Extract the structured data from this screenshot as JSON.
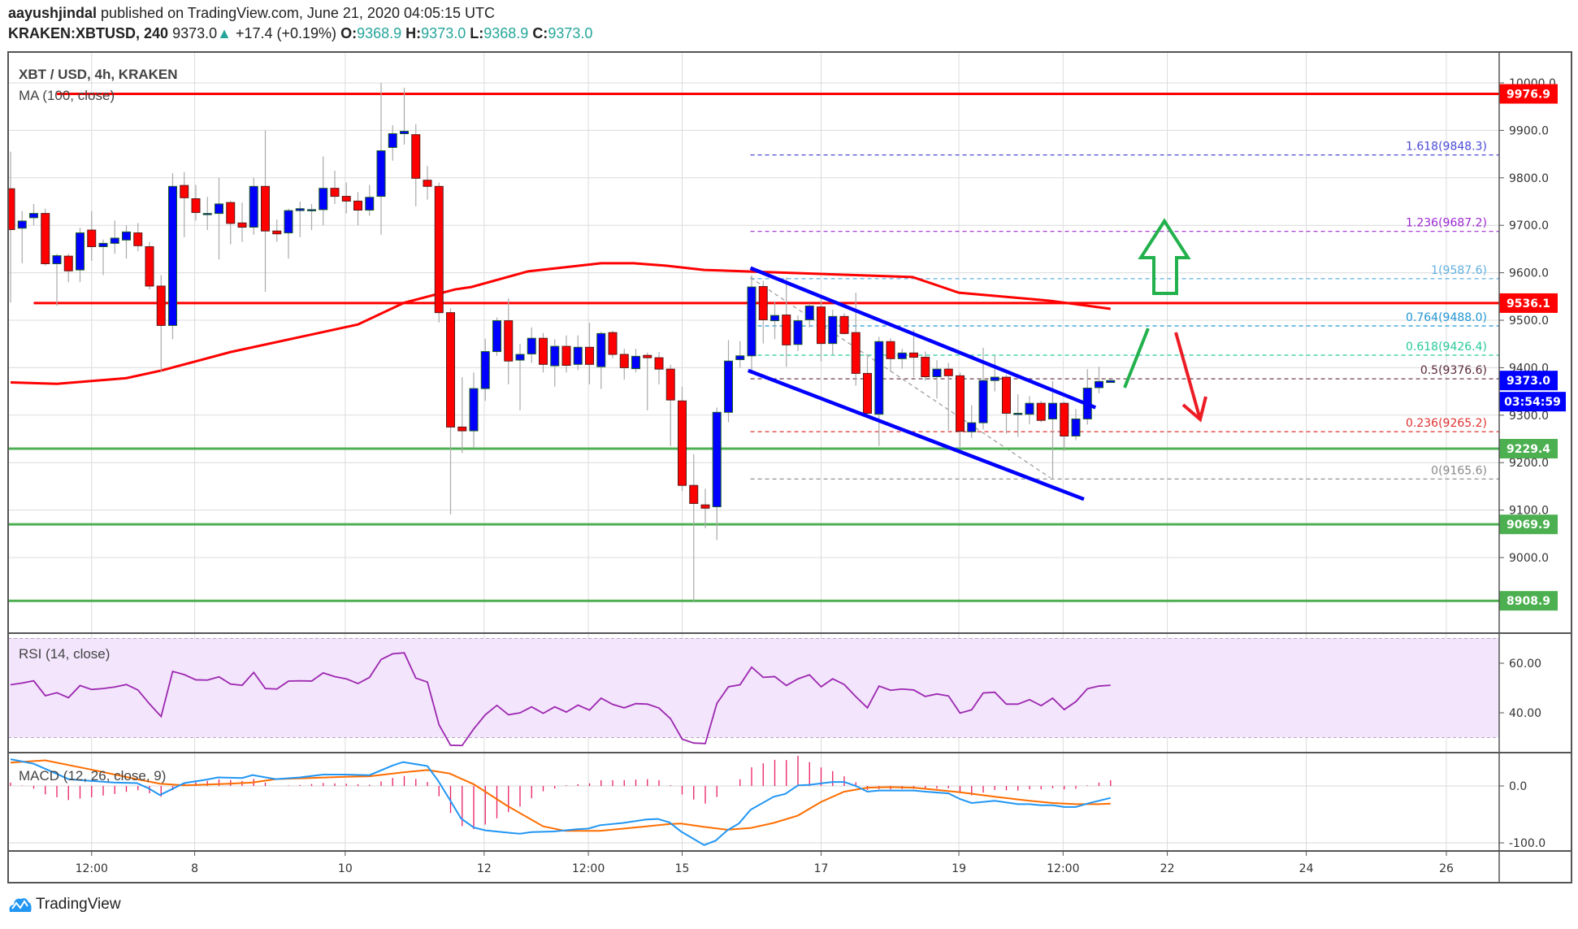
{
  "header": {
    "author": "aayushjindal",
    "published": " published on TradingView.com, June 21, 2020 04:05:15 UTC",
    "symbol": "KRAKEN:XBTUSD, 240",
    "last": "9373.0",
    "change": "+17.4 (+0.19%)",
    "o_label": "O:",
    "o": "9368.9",
    "h_label": "H:",
    "h": "9373.0",
    "l_label": "L:",
    "l": "9368.9",
    "c_label": "C:",
    "c": "9373.0",
    "up_color": "#26a69a"
  },
  "footer": {
    "brand": "TradingView"
  },
  "chart_data": {
    "type": "candlestick",
    "title": "XBT / USD, 4h, KRAKEN",
    "ma_label": "MA (100, close)",
    "rsi_label": "RSI (14, close)",
    "macd_label": "MACD (12, 26, close, 9)",
    "ylim": [
      8850,
      10040
    ],
    "price_ticks": [
      "10000.0",
      "9900.0",
      "9800.0",
      "9700.0",
      "9600.0",
      "9500.0",
      "9400.0",
      "9300.0",
      "9200.0",
      "9100.0",
      "9000.0"
    ],
    "price_tick_values": [
      10000,
      9900,
      9800,
      9700,
      9600,
      9500,
      9400,
      9300,
      9200,
      9100,
      9000
    ],
    "time_ticks": [
      {
        "label": "12:00",
        "candle": 8.0
      },
      {
        "label": "8",
        "candle": 16.9
      },
      {
        "label": "10",
        "candle": 29.9
      },
      {
        "label": "12",
        "candle": 41.9
      },
      {
        "label": "12:00",
        "candle": 50.9
      },
      {
        "label": "15",
        "candle": 59.0
      },
      {
        "label": "17",
        "candle": 71.0
      },
      {
        "label": "19",
        "candle": 82.9
      },
      {
        "label": "12:00",
        "candle": 91.9
      },
      {
        "label": "22",
        "candle": 100.9
      },
      {
        "label": "24",
        "candle": 112.9
      },
      {
        "label": "26",
        "candle": 125.0
      }
    ],
    "colors": {
      "up": "#0000ff",
      "down": "#ff0000",
      "ma": "#ff0000",
      "rsi": "#9c27b0",
      "macd": "#2196f3",
      "signal": "#ff6d00",
      "hist": "#e91e63",
      "channel": "#0000ff"
    },
    "candles_ohlc": [
      [
        9777,
        9855,
        9537,
        9691
      ],
      [
        9694,
        9730,
        9620,
        9709
      ],
      [
        9716,
        9745,
        9700,
        9725
      ],
      [
        9725,
        9735,
        9615,
        9619
      ],
      [
        9619,
        9640,
        9530,
        9636
      ],
      [
        9635,
        9640,
        9580,
        9604
      ],
      [
        9606,
        9695,
        9580,
        9684
      ],
      [
        9690,
        9730,
        9625,
        9655
      ],
      [
        9655,
        9670,
        9595,
        9662
      ],
      [
        9662,
        9710,
        9640,
        9673
      ],
      [
        9669,
        9700,
        9630,
        9686
      ],
      [
        9684,
        9705,
        9645,
        9657
      ],
      [
        9655,
        9665,
        9565,
        9572
      ],
      [
        9572,
        9595,
        9390,
        9489
      ],
      [
        9489,
        9810,
        9460,
        9782
      ],
      [
        9784,
        9812,
        9675,
        9758
      ],
      [
        9756,
        9785,
        9710,
        9727
      ],
      [
        9725,
        9760,
        9690,
        9725
      ],
      [
        9725,
        9800,
        9628,
        9745
      ],
      [
        9748,
        9752,
        9660,
        9704
      ],
      [
        9705,
        9748,
        9665,
        9696
      ],
      [
        9696,
        9800,
        9680,
        9782
      ],
      [
        9782,
        9900,
        9560,
        9688
      ],
      [
        9688,
        9712,
        9665,
        9682
      ],
      [
        9684,
        9735,
        9630,
        9731
      ],
      [
        9731,
        9750,
        9675,
        9735
      ],
      [
        9733,
        9745,
        9690,
        9733
      ],
      [
        9733,
        9845,
        9700,
        9778
      ],
      [
        9778,
        9815,
        9745,
        9761
      ],
      [
        9761,
        9790,
        9725,
        9751
      ],
      [
        9751,
        9770,
        9700,
        9732
      ],
      [
        9732,
        9785,
        9720,
        9759
      ],
      [
        9761,
        10000,
        9680,
        9857
      ],
      [
        9864,
        9911,
        9836,
        9893
      ],
      [
        9893,
        9990,
        9870,
        9898
      ],
      [
        9891,
        9913,
        9740,
        9799
      ],
      [
        9795,
        9825,
        9754,
        9782
      ],
      [
        9782,
        9790,
        9495,
        9516
      ],
      [
        9516,
        9525,
        9091,
        9275
      ],
      [
        9275,
        9380,
        9220,
        9267
      ],
      [
        9267,
        9390,
        9230,
        9356
      ],
      [
        9356,
        9461,
        9330,
        9434
      ],
      [
        9434,
        9506,
        9425,
        9499
      ],
      [
        9499,
        9546,
        9365,
        9414
      ],
      [
        9416,
        9450,
        9310,
        9428
      ],
      [
        9429,
        9485,
        9410,
        9462
      ],
      [
        9462,
        9473,
        9390,
        9407
      ],
      [
        9404,
        9460,
        9360,
        9445
      ],
      [
        9445,
        9468,
        9390,
        9405
      ],
      [
        9407,
        9468,
        9395,
        9443
      ],
      [
        9443,
        9495,
        9365,
        9407
      ],
      [
        9402,
        9476,
        9355,
        9472
      ],
      [
        9474,
        9478,
        9420,
        9428
      ],
      [
        9428,
        9440,
        9375,
        9400
      ],
      [
        9398,
        9440,
        9390,
        9424
      ],
      [
        9426,
        9432,
        9310,
        9421
      ],
      [
        9421,
        9433,
        9365,
        9397
      ],
      [
        9397,
        9406,
        9235,
        9332
      ],
      [
        9330,
        9360,
        9140,
        9152
      ],
      [
        9152,
        9218,
        8908,
        9114
      ],
      [
        9111,
        9145,
        9062,
        9104
      ],
      [
        9107,
        9316,
        9037,
        9306
      ],
      [
        9306,
        9458,
        9285,
        9414
      ],
      [
        9417,
        9456,
        9400,
        9425
      ],
      [
        9425,
        9595,
        9387,
        9570
      ],
      [
        9571,
        9583,
        9451,
        9501
      ],
      [
        9499,
        9540,
        9460,
        9510
      ],
      [
        9511,
        9590,
        9402,
        9448
      ],
      [
        9449,
        9510,
        9435,
        9499
      ],
      [
        9501,
        9535,
        9485,
        9530
      ],
      [
        9528,
        9547,
        9413,
        9451
      ],
      [
        9451,
        9522,
        9428,
        9508
      ],
      [
        9508,
        9515,
        9470,
        9472
      ],
      [
        9474,
        9558,
        9362,
        9388
      ],
      [
        9388,
        9423,
        9300,
        9304
      ],
      [
        9302,
        9465,
        9235,
        9455
      ],
      [
        9455,
        9462,
        9391,
        9419
      ],
      [
        9419,
        9440,
        9398,
        9431
      ],
      [
        9431,
        9480,
        9380,
        9422
      ],
      [
        9422,
        9434,
        9373,
        9381
      ],
      [
        9381,
        9416,
        9335,
        9397
      ],
      [
        9397,
        9410,
        9268,
        9383
      ],
      [
        9383,
        9390,
        9233,
        9266
      ],
      [
        9265,
        9321,
        9252,
        9284
      ],
      [
        9284,
        9442,
        9270,
        9373
      ],
      [
        9373,
        9425,
        9350,
        9380
      ],
      [
        9380,
        9385,
        9261,
        9304
      ],
      [
        9304,
        9344,
        9254,
        9304
      ],
      [
        9302,
        9340,
        9281,
        9325
      ],
      [
        9325,
        9330,
        9285,
        9289
      ],
      [
        9292,
        9372,
        9167,
        9325
      ],
      [
        9325,
        9328,
        9225,
        9256
      ],
      [
        9256,
        9313,
        9247,
        9292
      ],
      [
        9292,
        9397,
        9280,
        9357
      ],
      [
        9358,
        9402,
        9346,
        9371
      ],
      [
        9368.9,
        9373,
        9368.9,
        9373
      ]
    ],
    "ma100": [
      [
        1,
        9369
      ],
      [
        5,
        9366
      ],
      [
        11,
        9378
      ],
      [
        14,
        9394
      ],
      [
        20,
        9433
      ],
      [
        31,
        9491
      ],
      [
        35,
        9537
      ],
      [
        39.4,
        9565
      ],
      [
        40.8,
        9570
      ],
      [
        45.7,
        9603
      ],
      [
        52,
        9620
      ],
      [
        54.8,
        9620
      ],
      [
        57.6,
        9615
      ],
      [
        60.9,
        9606
      ],
      [
        63.2,
        9604
      ],
      [
        78.9,
        9591
      ],
      [
        82.9,
        9558
      ],
      [
        90.8,
        9541
      ],
      [
        96,
        9524
      ]
    ],
    "horizontal_levels": [
      {
        "label": "9976.9",
        "value": 9976.9,
        "color": "#ff0000",
        "from_candle": 5
      },
      {
        "label": "9536.1",
        "value": 9536.1,
        "color": "#ff0000",
        "from_candle": 3
      },
      {
        "label": "9229.4",
        "value": 9229.4,
        "color": "#4caf50",
        "from_candle": 0
      },
      {
        "label": "9069.9",
        "value": 9069.9,
        "color": "#4caf50",
        "from_candle": 0
      },
      {
        "label": "8908.9",
        "value": 8908.9,
        "color": "#4caf50",
        "from_candle": 0
      }
    ],
    "last_price": {
      "label": "9373.0",
      "value": 9373.0,
      "countdown": "03:54:59",
      "color": "#0000ff"
    },
    "fib_levels": [
      {
        "label": "1.618(9848.3)",
        "value": 9848.3,
        "color": "#4a4ad6"
      },
      {
        "label": "1.236(9687.2)",
        "value": 9687.2,
        "color": "#9c27d0"
      },
      {
        "label": "1(9587.6)",
        "value": 9587.6,
        "color": "#5fb0e0"
      },
      {
        "label": "0.764(9488.0)",
        "value": 9488.0,
        "color": "#2196d3"
      },
      {
        "label": "0.618(9426.4)",
        "value": 9426.4,
        "color": "#26c99a"
      },
      {
        "label": "0.5(9376.6)",
        "value": 9376.6,
        "color": "#5a2a3a"
      },
      {
        "label": "0.236(9265.2)",
        "value": 9265.2,
        "color": "#e03030"
      },
      {
        "label": "0(9165.6)",
        "value": 9165.6,
        "color": "#888888"
      }
    ],
    "fib_start_candle": 64.9,
    "fib_trend": [
      [
        64.9,
        9590
      ],
      [
        90.8,
        9168
      ]
    ],
    "channel_upper": [
      [
        64.9,
        9610
      ],
      [
        94.7,
        9316
      ]
    ],
    "channel_lower": [
      [
        64.7,
        9394
      ],
      [
        93.7,
        9123
      ]
    ],
    "rsi": {
      "ticks": [
        "60.00",
        "40.00"
      ],
      "tick_values": [
        60,
        40
      ],
      "band": [
        30,
        70
      ],
      "values": [
        51.3,
        52.0,
        52.9,
        46.9,
        48.1,
        46.1,
        51.0,
        49.4,
        49.8,
        50.4,
        51.4,
        49.2,
        43.6,
        38.5,
        56.7,
        55.4,
        53.3,
        53.2,
        54.5,
        51.6,
        51.1,
        56.3,
        49.8,
        49.6,
        52.8,
        52.9,
        52.8,
        56.1,
        54.6,
        53.7,
        51.8,
        54.3,
        61.5,
        63.8,
        64.2,
        54.0,
        52.4,
        35.2,
        26.9,
        26.8,
        33.5,
        39.2,
        43.0,
        39.2,
        40.0,
        42.4,
        39.8,
        42.4,
        40.3,
        43.1,
        41.1,
        45.9,
        43.4,
        42.0,
        43.7,
        43.5,
        41.9,
        37.6,
        29.4,
        27.8,
        27.6,
        43.8,
        50.5,
        51.3,
        58.4,
        54.3,
        54.6,
        51.0,
        53.7,
        55.3,
        50.5,
        53.7,
        51.4,
        46.5,
        42.0,
        50.8,
        49.1,
        49.6,
        49.2,
        46.6,
        47.6,
        46.8,
        39.9,
        41.2,
        48.0,
        48.3,
        43.5,
        43.5,
        45.3,
        42.9,
        45.9,
        41.3,
        44.5,
        49.7,
        50.8,
        51.1
      ]
    },
    "macd": {
      "ticks": [
        "0.0",
        "-100.0"
      ],
      "tick_values": [
        0,
        -100
      ],
      "macd_line": [
        [
          1,
          47
        ],
        [
          3,
          39
        ],
        [
          4.9,
          22
        ],
        [
          6,
          12
        ],
        [
          7.9,
          9
        ],
        [
          9.9,
          6
        ],
        [
          11.9,
          5
        ],
        [
          12.9,
          -4
        ],
        [
          13.9,
          -16
        ],
        [
          16,
          5
        ],
        [
          17.9,
          11
        ],
        [
          18.9,
          15
        ],
        [
          21,
          14
        ],
        [
          21.9,
          19
        ],
        [
          23.9,
          12
        ],
        [
          26,
          15
        ],
        [
          28,
          20
        ],
        [
          29.9,
          20
        ],
        [
          32,
          19
        ],
        [
          34,
          36
        ],
        [
          34.9,
          42
        ],
        [
          37,
          35
        ],
        [
          37.9,
          10
        ],
        [
          38.9,
          -23
        ],
        [
          39.9,
          -57
        ],
        [
          41,
          -73
        ],
        [
          42,
          -78
        ],
        [
          43.9,
          -82
        ],
        [
          45,
          -84
        ],
        [
          46,
          -81
        ],
        [
          47.9,
          -80
        ],
        [
          49.9,
          -76
        ],
        [
          50.9,
          -75
        ],
        [
          51.9,
          -69
        ],
        [
          53.9,
          -65
        ],
        [
          55.9,
          -59
        ],
        [
          56.9,
          -58
        ],
        [
          57.9,
          -64
        ],
        [
          58.9,
          -80
        ],
        [
          59.9,
          -92
        ],
        [
          60.9,
          -104
        ],
        [
          61.9,
          -96
        ],
        [
          62.9,
          -78
        ],
        [
          63.9,
          -66
        ],
        [
          64.9,
          -42
        ],
        [
          66.9,
          -19
        ],
        [
          67.9,
          -14
        ],
        [
          69,
          1
        ],
        [
          70,
          2
        ],
        [
          72,
          7
        ],
        [
          73,
          7
        ],
        [
          74,
          0
        ],
        [
          75,
          -10
        ],
        [
          76,
          -8
        ],
        [
          79,
          -8
        ],
        [
          80,
          -10
        ],
        [
          82,
          -13
        ],
        [
          83,
          -23
        ],
        [
          84,
          -30
        ],
        [
          86,
          -26
        ],
        [
          88,
          -32
        ],
        [
          89,
          -32
        ],
        [
          90,
          -34
        ],
        [
          91,
          -34
        ],
        [
          92,
          -37
        ],
        [
          93,
          -37
        ],
        [
          94,
          -31
        ],
        [
          96,
          -21
        ]
      ],
      "signal_line": [
        [
          1,
          41
        ],
        [
          4,
          45
        ],
        [
          7.9,
          29
        ],
        [
          11.9,
          12
        ],
        [
          13.9,
          4
        ],
        [
          16,
          1
        ],
        [
          19.9,
          4
        ],
        [
          21.9,
          6
        ],
        [
          23.9,
          12
        ],
        [
          29.9,
          16
        ],
        [
          32,
          17
        ],
        [
          34.9,
          24
        ],
        [
          37,
          28
        ],
        [
          38.9,
          22
        ],
        [
          41,
          3
        ],
        [
          43.9,
          -35
        ],
        [
          47,
          -71
        ],
        [
          48.9,
          -79
        ],
        [
          51.9,
          -79
        ],
        [
          55.9,
          -71
        ],
        [
          57.9,
          -67
        ],
        [
          58.9,
          -66
        ],
        [
          60.9,
          -72
        ],
        [
          62.9,
          -77
        ],
        [
          64.9,
          -74
        ],
        [
          66.9,
          -65
        ],
        [
          69,
          -52
        ],
        [
          71,
          -28
        ],
        [
          73,
          -10
        ],
        [
          75,
          -3
        ],
        [
          77,
          -2
        ],
        [
          79,
          -3
        ],
        [
          81,
          -7
        ],
        [
          83,
          -11
        ],
        [
          86,
          -19
        ],
        [
          89,
          -26
        ],
        [
          91,
          -30
        ],
        [
          93,
          -32
        ],
        [
          95,
          -32
        ],
        [
          96,
          -31
        ]
      ]
    },
    "annotations": [
      "green-up-arrow",
      "green-bullish-path",
      "red-bearish-arrow"
    ]
  }
}
